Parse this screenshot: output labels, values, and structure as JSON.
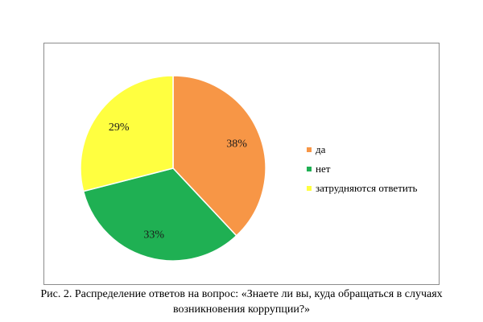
{
  "chart_data": {
    "type": "pie",
    "categories": [
      "да",
      "нет",
      "затрудняются ответить"
    ],
    "values": [
      38,
      33,
      29
    ],
    "labels": [
      "38%",
      "33%",
      "29%"
    ],
    "colors": [
      "#F79646",
      "#1FB053",
      "#FFFF40"
    ],
    "legend_position": "right",
    "start_angle_deg": 0,
    "direction": "clockwise"
  },
  "caption": {
    "prefix": "Рис. 2.",
    "line1": " Распределение ответов на вопрос: «Знаете ли вы, куда обращаться в случаях",
    "line2": "возникновения коррупции?»"
  }
}
